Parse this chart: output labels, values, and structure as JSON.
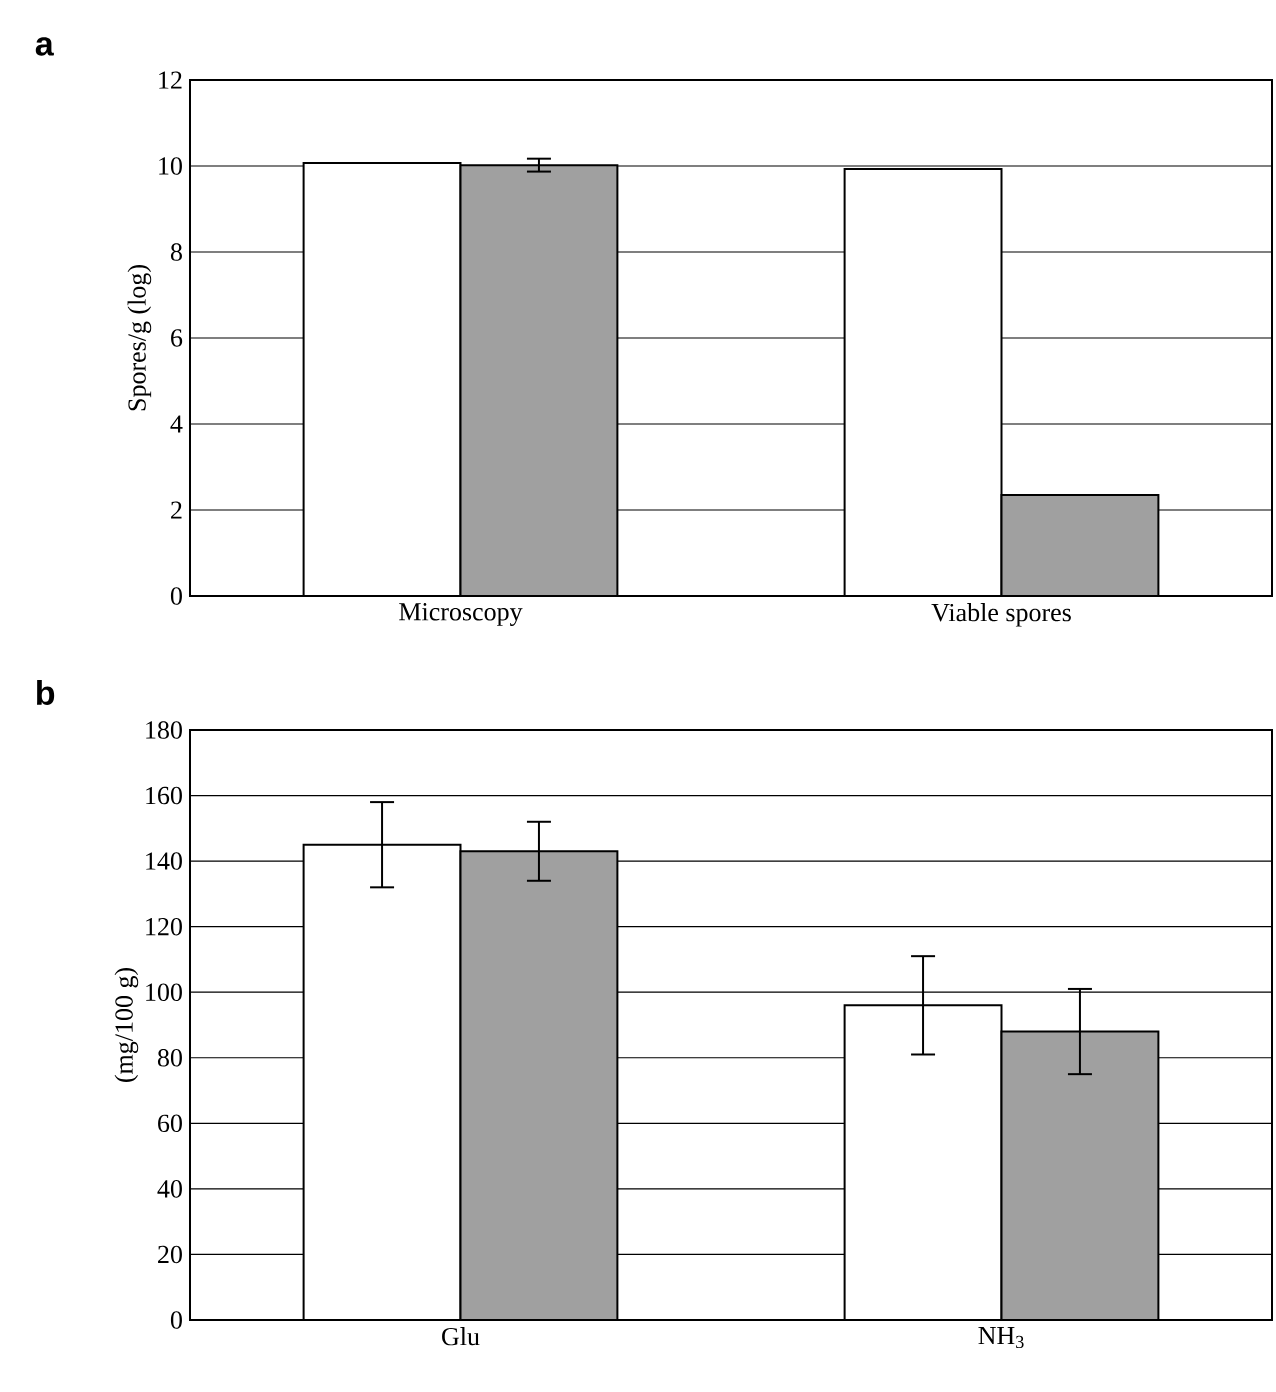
{
  "chart_data": [
    {
      "type": "bar",
      "title": "a",
      "ylabel": "Spores/g (log)",
      "categories": [
        "Microscopy",
        "Viable spores"
      ],
      "series": [
        {
          "color": "#ffffff",
          "values": [
            10.07,
            9.93
          ],
          "errors": [
            null,
            null
          ]
        },
        {
          "color": "#a0a0a0",
          "values": [
            10.02,
            2.35
          ],
          "errors": [
            0.15,
            null
          ]
        }
      ],
      "ylim": [
        0,
        12
      ],
      "yticks": [
        0,
        2,
        4,
        6,
        8,
        10,
        12
      ],
      "grid": "y"
    },
    {
      "type": "bar",
      "title": "b",
      "ylabel": "(mg/100 g)",
      "categories": [
        "Glu",
        "NH$_{3}$"
      ],
      "series": [
        {
          "color": "#ffffff",
          "values": [
            145,
            96
          ],
          "errors": [
            13,
            15
          ]
        },
        {
          "color": "#a0a0a0",
          "values": [
            143,
            88
          ],
          "errors": [
            9,
            13
          ]
        }
      ],
      "ylim": [
        0,
        180
      ],
      "yticks": [
        0,
        20,
        40,
        60,
        80,
        100,
        120,
        140,
        160,
        180
      ],
      "grid": "y"
    }
  ]
}
